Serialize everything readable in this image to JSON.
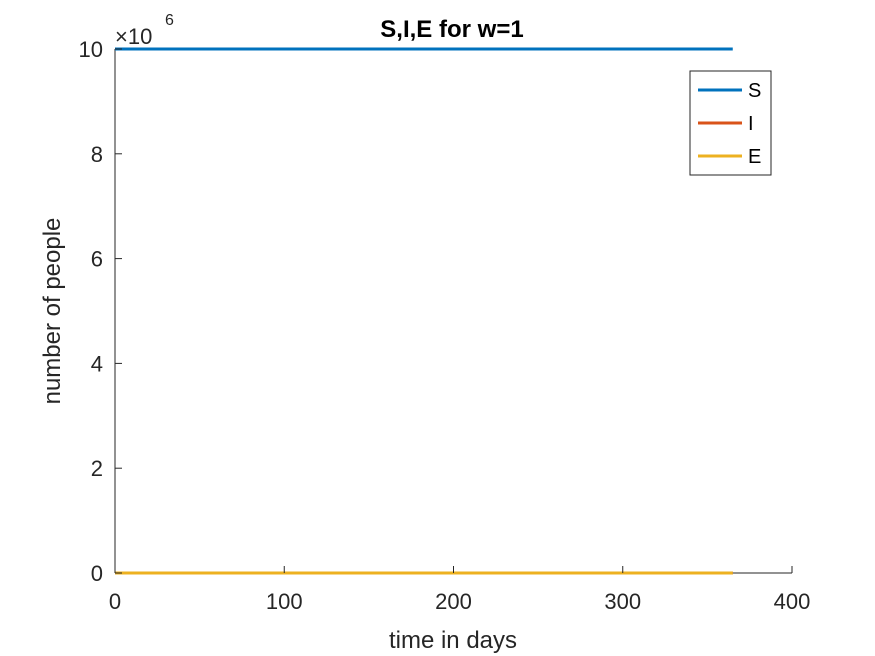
{
  "chart_data": {
    "type": "line",
    "title": "S,I,E for w=1",
    "xlabel": "time in days",
    "ylabel": "number of people",
    "xlim": [
      0,
      400
    ],
    "ylim": [
      0,
      10000000
    ],
    "xticks": [
      "0",
      "100",
      "200",
      "300",
      "400"
    ],
    "yticks": [
      "0",
      "2",
      "4",
      "6",
      "8",
      "10"
    ],
    "y_exponent_base": "×10",
    "y_exponent_power": "6",
    "grid": false,
    "legend_position": "top-right",
    "series": [
      {
        "name": "S",
        "color": "#0072BD",
        "x": [
          0,
          365
        ],
        "y": [
          10000000,
          10000000
        ]
      },
      {
        "name": "I",
        "color": "#D95319",
        "x": [
          0,
          365
        ],
        "y": [
          0,
          0
        ]
      },
      {
        "name": "E",
        "color": "#EDB120",
        "x": [
          0,
          365
        ],
        "y": [
          0,
          0
        ]
      }
    ]
  }
}
